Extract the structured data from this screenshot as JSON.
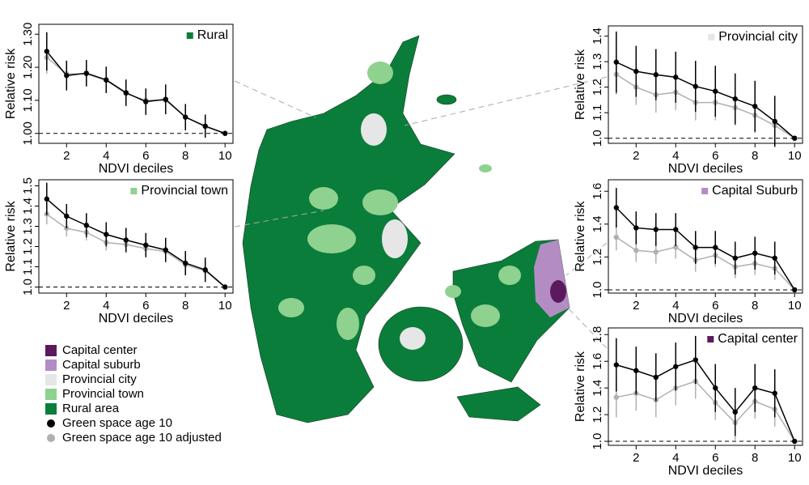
{
  "chart_data": [
    {
      "type": "line",
      "title": "Rural",
      "color": "#0a7d3a",
      "xlabel": "NDVI deciles",
      "ylabel": "Relative risk",
      "x": [
        1,
        2,
        3,
        4,
        5,
        6,
        7,
        8,
        9,
        10
      ],
      "xlim": [
        0.6,
        10.4
      ],
      "xticks": [
        2,
        4,
        6,
        8,
        10
      ],
      "ylim": [
        0.97,
        1.33
      ],
      "yticks": [
        {
          "value": 1.0,
          "label": "1.00"
        },
        {
          "value": 1.1,
          "label": "1.10"
        },
        {
          "value": 1.2,
          "label": "1.20"
        },
        {
          "value": 1.3,
          "label": "1.30"
        }
      ],
      "hline": 1,
      "series": [
        {
          "color": "#b0b0b0",
          "values": [
            1.23,
            1.18,
            1.18,
            1.16,
            1.12,
            1.1,
            1.1,
            1.05,
            1.02,
            1.0
          ],
          "errors": [
            0.05,
            0.04,
            0.035,
            0.035,
            0.035,
            0.035,
            0.04,
            0.035,
            0.03,
            0
          ]
        },
        {
          "color": "#000000",
          "values": [
            1.248,
            1.175,
            1.182,
            1.162,
            1.123,
            1.096,
            1.103,
            1.049,
            1.022,
            1.0
          ],
          "errors": [
            0.058,
            0.045,
            0.04,
            0.04,
            0.04,
            0.04,
            0.045,
            0.04,
            0.035,
            0
          ]
        }
      ]
    },
    {
      "type": "line",
      "title": "Provincial city",
      "color": "#e6e6e6",
      "xlabel": "NDVI deciles",
      "ylabel": "Relative risk",
      "x": [
        1,
        2,
        3,
        4,
        5,
        6,
        7,
        8,
        9,
        10
      ],
      "xlim": [
        0.6,
        10.4
      ],
      "xticks": [
        2,
        4,
        6,
        8,
        10
      ],
      "ylim": [
        0.98,
        1.44
      ],
      "yticks": [
        {
          "value": 1.0,
          "label": "1.0"
        },
        {
          "value": 1.1,
          "label": "1.1"
        },
        {
          "value": 1.2,
          "label": "1.2"
        },
        {
          "value": 1.3,
          "label": "1.3"
        },
        {
          "value": 1.4,
          "label": "1.4"
        }
      ],
      "hline": 1,
      "series": [
        {
          "color": "#b0b0b0",
          "values": [
            1.25,
            1.2,
            1.17,
            1.18,
            1.14,
            1.14,
            1.12,
            1.09,
            1.05,
            1.0
          ],
          "errors": [
            0.08,
            0.07,
            0.07,
            0.07,
            0.07,
            0.07,
            0.07,
            0.07,
            0.07,
            0
          ]
        },
        {
          "color": "#000000",
          "values": [
            1.298,
            1.262,
            1.249,
            1.239,
            1.203,
            1.184,
            1.154,
            1.125,
            1.066,
            1.0
          ],
          "errors": [
            0.12,
            0.1,
            0.1,
            0.1,
            0.1,
            0.1,
            0.1,
            0.1,
            0.1,
            0
          ]
        }
      ]
    },
    {
      "type": "line",
      "title": "Provincial town",
      "color": "#8fd18f",
      "xlabel": "NDVI deciles",
      "ylabel": "Relative risk",
      "x": [
        1,
        2,
        3,
        4,
        5,
        6,
        7,
        8,
        9,
        10
      ],
      "xlim": [
        0.6,
        10.4
      ],
      "xticks": [
        2,
        4,
        6,
        8,
        10
      ],
      "ylim": [
        0.97,
        1.53
      ],
      "yticks": [
        {
          "value": 1.0,
          "label": "1.0"
        },
        {
          "value": 1.1,
          "label": "1.1"
        },
        {
          "value": 1.2,
          "label": "1.2"
        },
        {
          "value": 1.3,
          "label": "1.3"
        },
        {
          "value": 1.4,
          "label": "1.4"
        },
        {
          "value": 1.5,
          "label": "1.5"
        }
      ],
      "hline": 1,
      "series": [
        {
          "color": "#b0b0b0",
          "values": [
            1.36,
            1.29,
            1.27,
            1.22,
            1.21,
            1.19,
            1.175,
            1.11,
            1.08,
            1.0
          ],
          "errors": [
            0.05,
            0.04,
            0.04,
            0.04,
            0.04,
            0.04,
            0.04,
            0.04,
            0.04,
            0
          ]
        },
        {
          "color": "#000000",
          "values": [
            1.435,
            1.35,
            1.305,
            1.26,
            1.232,
            1.207,
            1.183,
            1.118,
            1.085,
            1.0
          ],
          "errors": [
            0.08,
            0.06,
            0.06,
            0.06,
            0.06,
            0.06,
            0.06,
            0.06,
            0.06,
            0
          ]
        }
      ]
    },
    {
      "type": "line",
      "title": "Capital Suburb",
      "color": "#b48cc4",
      "xlabel": "NDVI deciles",
      "ylabel": "Relative risk",
      "x": [
        1,
        2,
        3,
        4,
        5,
        6,
        7,
        8,
        9,
        10
      ],
      "xlim": [
        0.6,
        10.4
      ],
      "xticks": [
        2,
        4,
        6,
        8,
        10
      ],
      "ylim": [
        0.98,
        1.67
      ],
      "yticks": [
        {
          "value": 1.0,
          "label": "1.0"
        },
        {
          "value": 1.2,
          "label": "1.2"
        },
        {
          "value": 1.4,
          "label": "1.4"
        },
        {
          "value": 1.6,
          "label": "1.6"
        }
      ],
      "hline": 1,
      "series": [
        {
          "color": "#b0b0b0",
          "values": [
            1.32,
            1.24,
            1.23,
            1.26,
            1.18,
            1.21,
            1.14,
            1.16,
            1.13,
            1.0
          ],
          "errors": [
            0.08,
            0.07,
            0.07,
            0.07,
            0.07,
            0.07,
            0.07,
            0.07,
            0.07,
            0
          ]
        },
        {
          "color": "#000000",
          "values": [
            1.5,
            1.377,
            1.367,
            1.367,
            1.258,
            1.258,
            1.193,
            1.223,
            1.193,
            1.0
          ],
          "errors": [
            0.12,
            0.1,
            0.1,
            0.1,
            0.1,
            0.1,
            0.1,
            0.1,
            0.1,
            0
          ]
        }
      ]
    },
    {
      "type": "line",
      "title": "Capital center",
      "color": "#5b1a5e",
      "xlabel": "NDVI deciles",
      "ylabel": "Relative risk",
      "x": [
        1,
        2,
        3,
        4,
        5,
        6,
        7,
        8,
        9,
        10
      ],
      "xlim": [
        0.6,
        10.4
      ],
      "xticks": [
        2,
        4,
        6,
        8,
        10
      ],
      "ylim": [
        0.97,
        1.85
      ],
      "yticks": [
        {
          "value": 1.0,
          "label": "1.0"
        },
        {
          "value": 1.2,
          "label": "1.2"
        },
        {
          "value": 1.4,
          "label": "1.4"
        },
        {
          "value": 1.6,
          "label": "1.6"
        },
        {
          "value": 1.8,
          "label": "1.8"
        }
      ],
      "hline": 1,
      "series": [
        {
          "color": "#b0b0b0",
          "values": [
            1.33,
            1.36,
            1.31,
            1.4,
            1.45,
            1.29,
            1.14,
            1.3,
            1.24,
            1.0
          ],
          "errors": [
            0.15,
            0.13,
            0.13,
            0.13,
            0.13,
            0.13,
            0.13,
            0.13,
            0.13,
            0
          ]
        },
        {
          "color": "#000000",
          "values": [
            1.573,
            1.53,
            1.48,
            1.56,
            1.61,
            1.4,
            1.22,
            1.4,
            1.36,
            1.0
          ],
          "errors": [
            0.2,
            0.18,
            0.18,
            0.18,
            0.18,
            0.18,
            0.18,
            0.18,
            0.18,
            0
          ]
        }
      ]
    }
  ],
  "legend": {
    "items": [
      {
        "label": "Capital center",
        "color": "#5b1a5e",
        "shape": "square"
      },
      {
        "label": "Capital suburb",
        "color": "#b48cc4",
        "shape": "square"
      },
      {
        "label": "Provincial city",
        "color": "#e6e6e6",
        "shape": "square"
      },
      {
        "label": "Provincial town",
        "color": "#8fd18f",
        "shape": "square"
      },
      {
        "label": "Rural area",
        "color": "#0a7d3a",
        "shape": "square"
      },
      {
        "label": "Green space age 10",
        "color": "#000000",
        "shape": "circle"
      },
      {
        "label": "Green space age 10 adjusted",
        "color": "#b0b0b0",
        "shape": "circle"
      }
    ]
  }
}
